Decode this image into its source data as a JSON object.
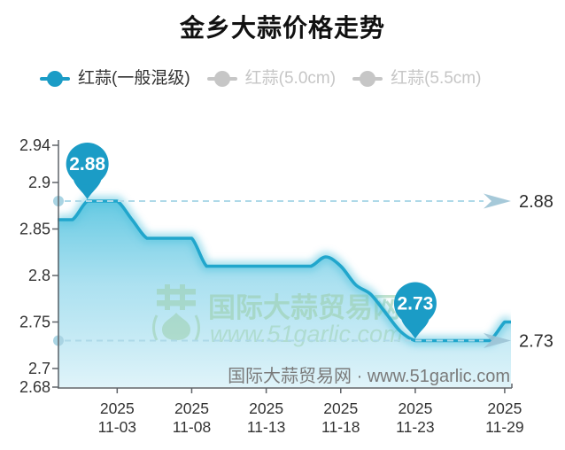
{
  "title": "金乡大蒜价格走势",
  "legend": {
    "items": [
      {
        "label": "红蒜(一般混级)",
        "active": true
      },
      {
        "label": "红蒜(5.0cm)",
        "active": false
      },
      {
        "label": "红蒜(5.5cm)",
        "active": false
      }
    ]
  },
  "colors": {
    "accent": "#1b9cc6",
    "line": "#21a6cc",
    "glow": "#55c3de",
    "area_top": "#5ec7e1",
    "area_mid": "#9edcee",
    "area_bottom": "#def3f9",
    "dashed": "#aed9e8",
    "arrow": "#9cc3d5",
    "axis_dot": "#a9d4e3",
    "axis": "#5f6368",
    "tick_label": "#333333",
    "inactive": "#c6c6c6",
    "balloon_text": "#ffffff",
    "watermark_green": "#9bcfad",
    "watermark_gray": "#7a7a7a",
    "right_label": "#2e2e2e"
  },
  "chart_data": {
    "type": "area",
    "title": "金乡大蒜价格走势",
    "grid": false,
    "legend_position": "top",
    "ylim": [
      2.68,
      2.94
    ],
    "y_ticks": [
      2.94,
      2.9,
      2.85,
      2.8,
      2.75,
      2.7,
      2.68
    ],
    "y_tick_labels": [
      "2.94",
      "2.9",
      "2.85",
      "2.8",
      "2.75",
      "2.7",
      "2.68"
    ],
    "series": [
      {
        "name": "红蒜(一般混级)",
        "dates": [
          "10-30",
          "10-31",
          "11-01",
          "11-02",
          "11-03",
          "11-04",
          "11-05",
          "11-06",
          "11-07",
          "11-08",
          "11-09",
          "11-10",
          "11-11",
          "11-12",
          "11-13",
          "11-14",
          "11-15",
          "11-16",
          "11-17",
          "11-18",
          "11-19",
          "11-20",
          "11-21",
          "11-22",
          "11-23",
          "11-24",
          "11-25",
          "11-26",
          "11-27",
          "11-28",
          "11-29"
        ],
        "values": [
          2.86,
          2.86,
          2.88,
          2.88,
          2.88,
          2.86,
          2.84,
          2.84,
          2.84,
          2.84,
          2.81,
          2.81,
          2.81,
          2.81,
          2.81,
          2.81,
          2.81,
          2.81,
          2.82,
          2.81,
          2.79,
          2.78,
          2.76,
          2.74,
          2.73,
          2.73,
          2.73,
          2.73,
          2.73,
          2.73,
          2.75
        ]
      }
    ],
    "inactive_series": [
      "红蒜(5.0cm)",
      "红蒜(5.5cm)"
    ],
    "x_tick_indices": [
      4,
      9,
      14,
      19,
      24,
      30
    ],
    "x_tick_labels": [
      [
        "2025",
        "11-03"
      ],
      [
        "2025",
        "11-08"
      ],
      [
        "2025",
        "11-13"
      ],
      [
        "2025",
        "11-18"
      ],
      [
        "2025",
        "11-23"
      ],
      [
        "2025",
        "11-29"
      ]
    ],
    "max_marker": {
      "index": 2,
      "label": "2.88"
    },
    "min_marker": {
      "index": 24,
      "label": "2.73"
    },
    "reference_lines": [
      {
        "value": 2.88,
        "label": "2.88"
      },
      {
        "value": 2.73,
        "label": "2.73"
      }
    ]
  },
  "watermark_center": {
    "brand": "国际大蒜贸易网",
    "url": "www.51garlic.com"
  },
  "watermark_bottom": "国际大蒜贸易网 · www.51garlic.com"
}
